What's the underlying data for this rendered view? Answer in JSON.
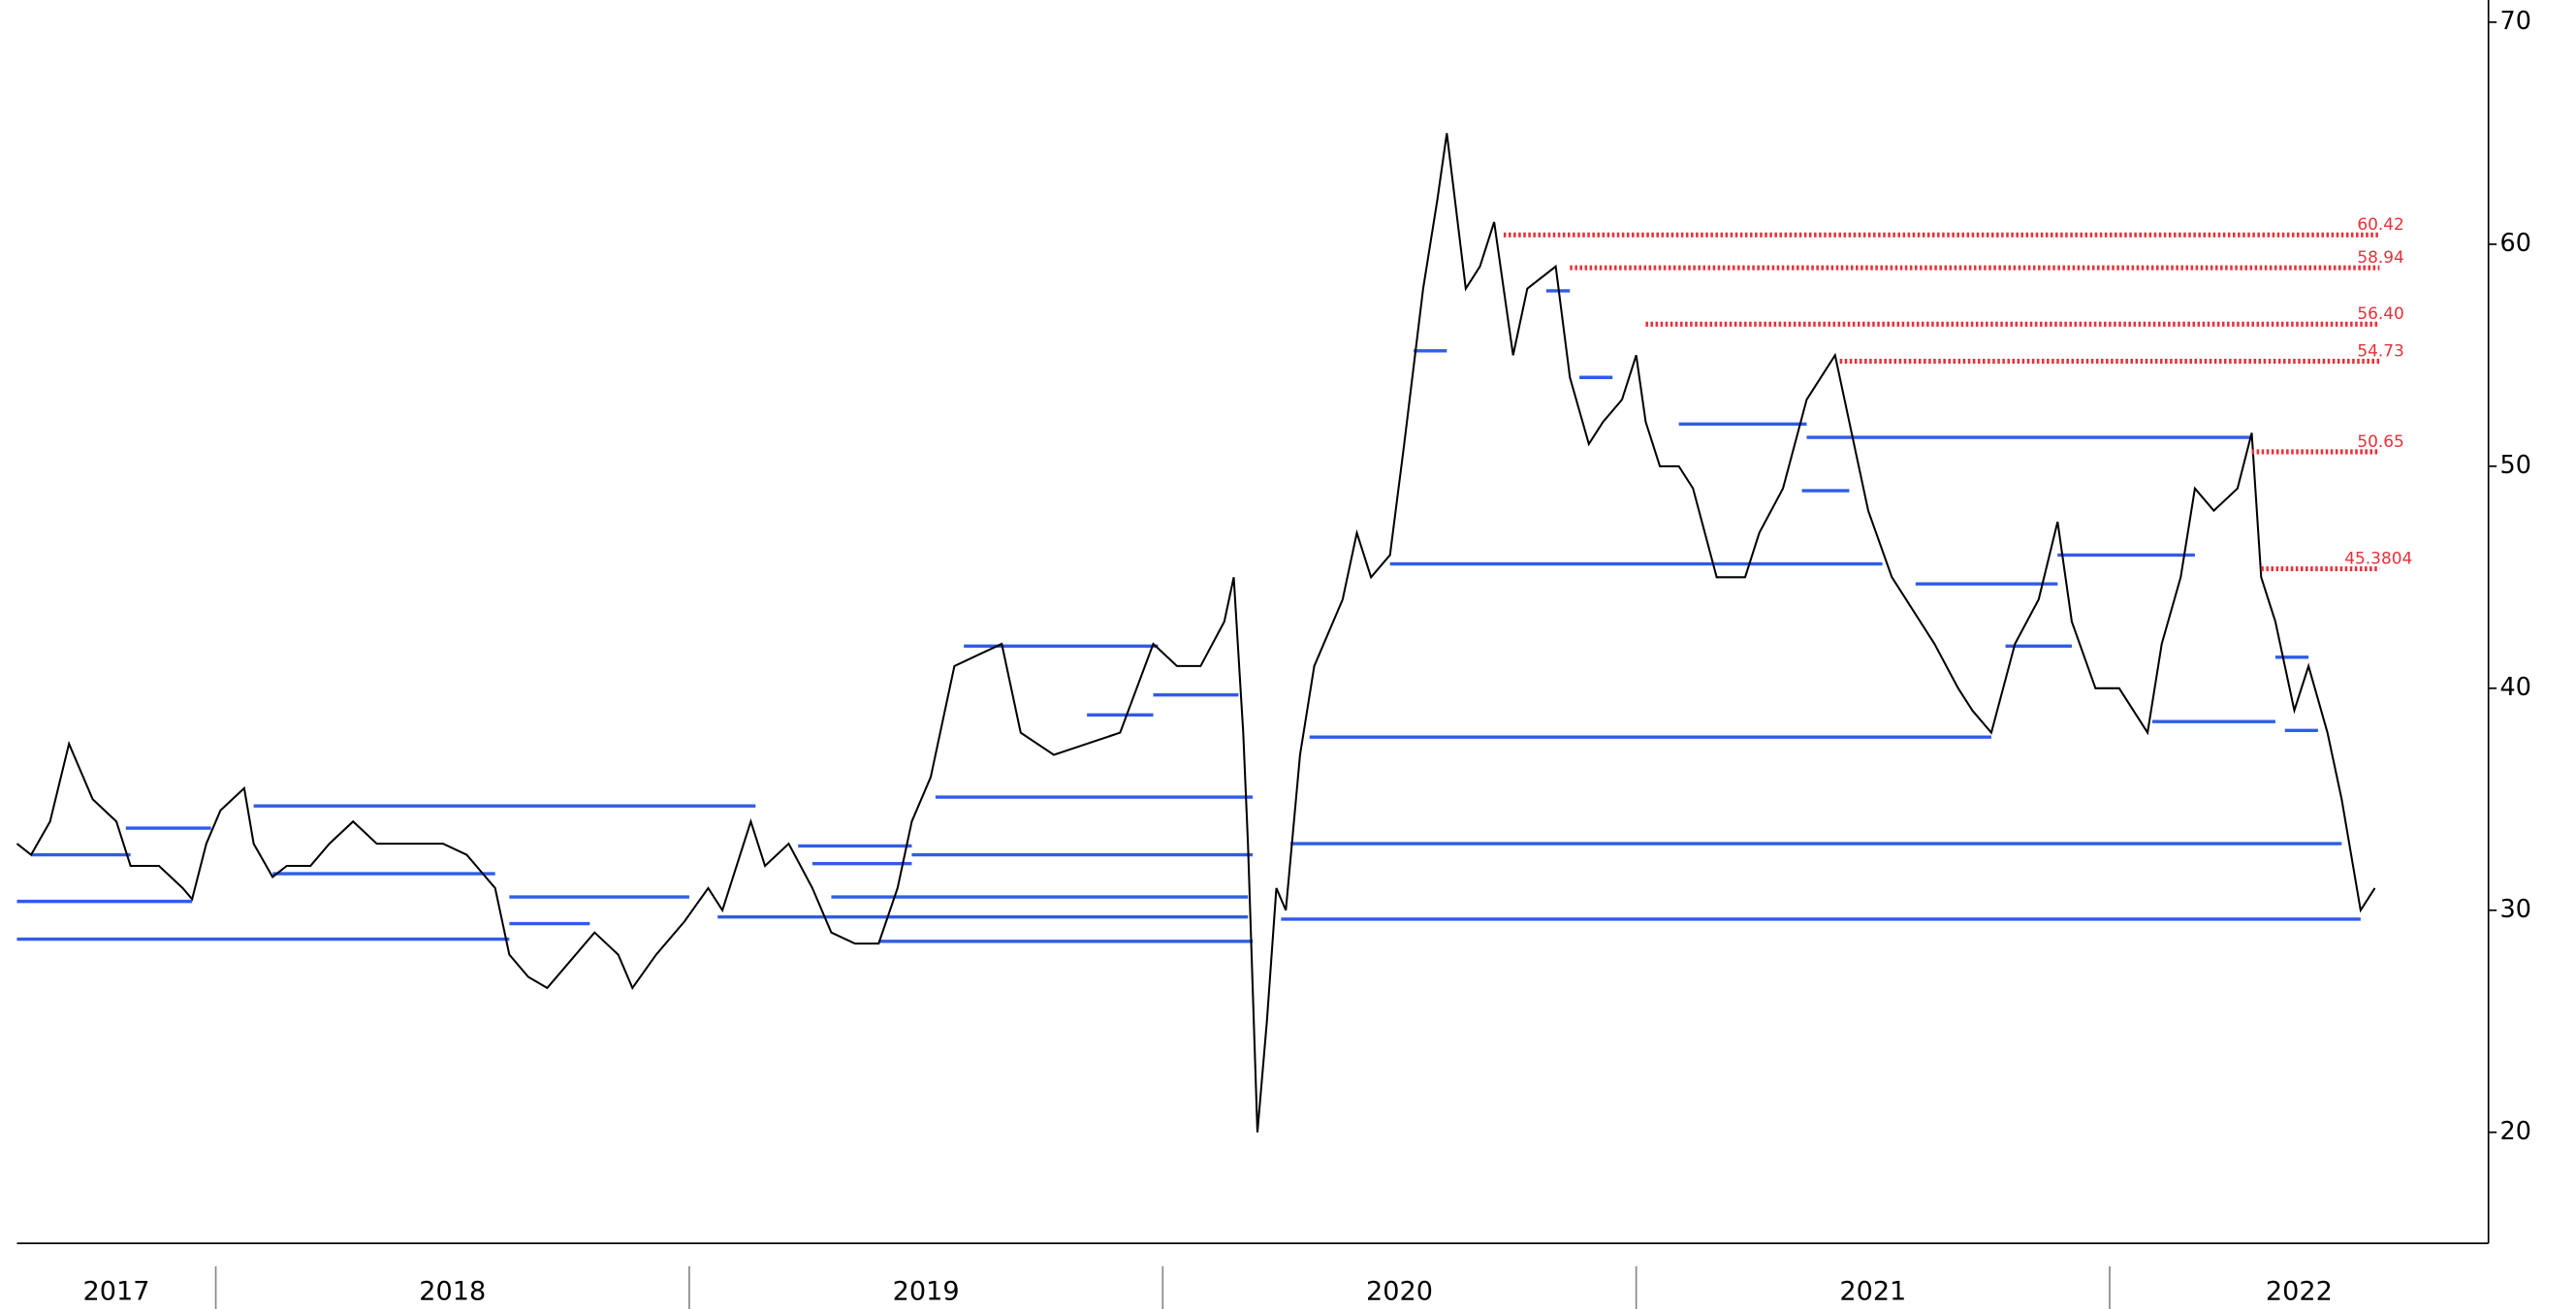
{
  "chart_data": {
    "type": "line",
    "x": [
      2017.58,
      2017.61,
      2017.65,
      2017.69,
      2017.74,
      2017.79,
      2017.82,
      2017.88,
      2017.93,
      2017.95,
      2017.98,
      2018.01,
      2018.06,
      2018.08,
      2018.12,
      2018.15,
      2018.2,
      2018.24,
      2018.29,
      2018.34,
      2018.41,
      2018.48,
      2018.53,
      2018.59,
      2018.62,
      2018.66,
      2018.7,
      2018.74,
      2018.8,
      2018.85,
      2018.88,
      2018.93,
      2018.99,
      2019.04,
      2019.07,
      2019.13,
      2019.16,
      2019.21,
      2019.26,
      2019.3,
      2019.35,
      2019.4,
      2019.44,
      2019.47,
      2019.51,
      2019.56,
      2019.61,
      2019.66,
      2019.7,
      2019.77,
      2019.84,
      2019.91,
      2019.98,
      2020.03,
      2020.08,
      2020.13,
      2020.15,
      2020.17,
      2020.18,
      2020.2,
      2020.22,
      2020.24,
      2020.26,
      2020.29,
      2020.32,
      2020.38,
      2020.41,
      2020.44,
      2020.48,
      2020.51,
      2020.55,
      2020.58,
      2020.6,
      2020.64,
      2020.67,
      2020.7,
      2020.74,
      2020.77,
      2020.83,
      2020.86,
      2020.9,
      2020.93,
      2020.97,
      2021.0,
      2021.02,
      2021.05,
      2021.09,
      2021.12,
      2021.17,
      2021.23,
      2021.26,
      2021.31,
      2021.36,
      2021.42,
      2021.45,
      2021.49,
      2021.54,
      2021.57,
      2021.63,
      2021.68,
      2021.71,
      2021.75,
      2021.8,
      2021.85,
      2021.89,
      2021.92,
      2021.97,
      2022.02,
      2022.08,
      2022.11,
      2022.15,
      2022.18,
      2022.22,
      2022.27,
      2022.3,
      2022.32,
      2022.35,
      2022.39,
      2022.42,
      2022.46,
      2022.49,
      2022.53,
      2022.56
    ],
    "series": [
      {
        "color": "#000000",
        "values": [
          33,
          32.5,
          34,
          37.5,
          35,
          34,
          32,
          32,
          31,
          30.5,
          33,
          34.5,
          35.5,
          33,
          31.5,
          32,
          32,
          33,
          34,
          33,
          33,
          33,
          32.5,
          31,
          28,
          27,
          26.5,
          27.5,
          29,
          28,
          26.5,
          28,
          29.5,
          31,
          30,
          34,
          32,
          33,
          31,
          29,
          28.5,
          28.5,
          31,
          34,
          36,
          41,
          41.5,
          42,
          38,
          37,
          37.5,
          38,
          42,
          41,
          41,
          43,
          45,
          38,
          33,
          20,
          25,
          31,
          30,
          37,
          41,
          44,
          47,
          45,
          46,
          51,
          58,
          62,
          65,
          58,
          59,
          61,
          55,
          58,
          59,
          54,
          51,
          52,
          53,
          55,
          52,
          50,
          50,
          49,
          45,
          45,
          47,
          49,
          53,
          55,
          52,
          48,
          45,
          44,
          42,
          40,
          39,
          38,
          42,
          44,
          47.5,
          43,
          40,
          40,
          38,
          42,
          45,
          49,
          48,
          49,
          51.5,
          45,
          43,
          39,
          41,
          38,
          35,
          30,
          31
        ]
      }
    ],
    "levels": {
      "color": "#2f5ce8",
      "items": [
        {
          "x": [
            2017.58,
            2017.95
          ],
          "value": 30.4
        },
        {
          "x": [
            2017.58,
            2018.62
          ],
          "value": 28.7
        },
        {
          "x": [
            2017.61,
            2017.82
          ],
          "value": 32.5
        },
        {
          "x": [
            2017.81,
            2017.99
          ],
          "value": 33.7
        },
        {
          "x": [
            2018.08,
            2019.14
          ],
          "value": 34.7
        },
        {
          "x": [
            2018.12,
            2018.59
          ],
          "value": 31.65
        },
        {
          "x": [
            2018.62,
            2019.0
          ],
          "value": 30.6
        },
        {
          "x": [
            2018.62,
            2018.79
          ],
          "value": 29.4
        },
        {
          "x": [
            2019.06,
            2020.18
          ],
          "value": 29.7
        },
        {
          "x": [
            2019.23,
            2019.47
          ],
          "value": 32.9
        },
        {
          "x": [
            2019.26,
            2019.47
          ],
          "value": 32.1
        },
        {
          "x": [
            2019.3,
            2020.18
          ],
          "value": 30.6
        },
        {
          "x": [
            2019.47,
            2020.19
          ],
          "value": 32.5
        },
        {
          "x": [
            2019.4,
            2020.19
          ],
          "value": 28.6
        },
        {
          "x": [
            2019.52,
            2020.19
          ],
          "value": 35.1
        },
        {
          "x": [
            2019.58,
            2019.99
          ],
          "value": 41.9
        },
        {
          "x": [
            2019.98,
            2020.16
          ],
          "value": 39.7
        },
        {
          "x": [
            2019.84,
            2019.98
          ],
          "value": 38.8
        },
        {
          "x": [
            2020.25,
            2022.53
          ],
          "value": 29.6
        },
        {
          "x": [
            2020.27,
            2022.49
          ],
          "value": 33
        },
        {
          "x": [
            2020.31,
            2021.75
          ],
          "value": 37.8
        },
        {
          "x": [
            2020.48,
            2021.52
          ],
          "value": 45.6
        },
        {
          "x": [
            2020.53,
            2020.6
          ],
          "value": 55.2
        },
        {
          "x": [
            2021.09,
            2021.36
          ],
          "value": 51.9
        },
        {
          "x": [
            2021.36,
            2022.3
          ],
          "value": 51.3
        },
        {
          "x": [
            2021.35,
            2021.45
          ],
          "value": 48.9
        },
        {
          "x": [
            2021.59,
            2021.89
          ],
          "value": 44.7
        },
        {
          "x": [
            2021.89,
            2022.18
          ],
          "value": 46
        },
        {
          "x": [
            2021.78,
            2021.92
          ],
          "value": 41.9
        },
        {
          "x": [
            2022.09,
            2022.35
          ],
          "value": 38.5
        },
        {
          "x": [
            2022.35,
            2022.42
          ],
          "value": 41.4
        },
        {
          "x": [
            2022.37,
            2022.44
          ],
          "value": 38.1
        },
        {
          "x": [
            2020.81,
            2020.86
          ],
          "value": 57.9
        },
        {
          "x": [
            2020.88,
            2020.95
          ],
          "value": 54
        }
      ]
    },
    "resistance": {
      "color": "#e8303a",
      "values": [
        60.42,
        58.94,
        56.4,
        54.73,
        50.65,
        45.3804
      ],
      "value_labels": [
        "60.42",
        "58.94",
        "56.40",
        "54.73",
        "50.65",
        "45.3804"
      ],
      "x_start": [
        2020.72,
        2020.86,
        2021.02,
        2021.43,
        2022.3,
        2022.32
      ],
      "x_end": 2022.57
    },
    "xlim": [
      2017.58,
      2022.8
    ],
    "xticks": [
      2017,
      2018,
      2019,
      2020,
      2021,
      2022
    ],
    "ylim": [
      15,
      71
    ],
    "yticks": [
      20,
      30,
      40,
      50,
      60,
      70
    ]
  }
}
